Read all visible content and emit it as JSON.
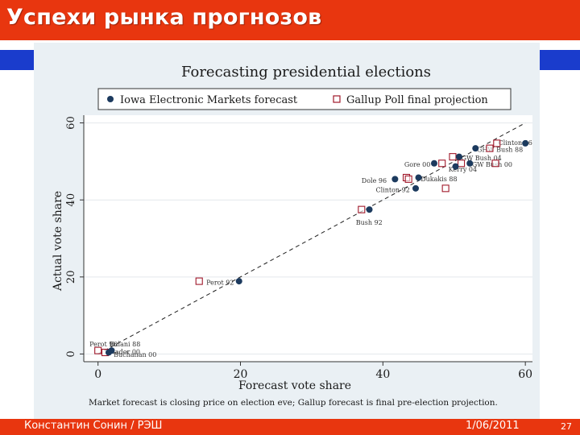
{
  "slide": {
    "title": "Успехи рынка прогнозов",
    "footer_left": "Константин Сонин / РЭШ",
    "footer_date": "1/06/2011",
    "page_number": "27",
    "colors": {
      "header": "#e8360f",
      "blue_bar": "#1a3ccc",
      "panel": "#eaf0f4",
      "iem": "#1c3a5e",
      "gallup": "#a0182a"
    }
  },
  "chart_data": {
    "type": "scatter",
    "title": "Forecasting presidential elections",
    "xlabel": "Forecast vote share",
    "ylabel": "Actual vote share",
    "xlim": [
      -2,
      61
    ],
    "ylim": [
      -2,
      62
    ],
    "xticks": [
      "0",
      "20",
      "40",
      "60"
    ],
    "yticks": [
      "0",
      "20",
      "40",
      "60"
    ],
    "legend": [
      "Iowa Electronic Markets forecast",
      "Gallup Poll final projection"
    ],
    "note": "Market forecast is closing price on election eve; Gallup forecast is final pre-election projection.",
    "reference_line": "45-degree dashed line",
    "series": [
      {
        "name": "Iowa Electronic Markets forecast",
        "marker": "circle",
        "points": [
          {
            "x": 60.0,
            "y": 54.7
          },
          {
            "x": 53.0,
            "y": 53.4
          },
          {
            "x": 50.7,
            "y": 51.2
          },
          {
            "x": 47.2,
            "y": 49.5
          },
          {
            "x": 50.2,
            "y": 48.7
          },
          {
            "x": 52.2,
            "y": 49.5
          },
          {
            "x": 45.0,
            "y": 45.8
          },
          {
            "x": 41.7,
            "y": 45.4
          },
          {
            "x": 44.6,
            "y": 43.0
          },
          {
            "x": 38.1,
            "y": 37.5
          },
          {
            "x": 19.8,
            "y": 18.9
          },
          {
            "x": 1.9,
            "y": 0.9
          },
          {
            "x": 1.5,
            "y": 0.4
          }
        ]
      },
      {
        "name": "Gallup Poll final projection",
        "marker": "hollow-square",
        "points": [
          {
            "x": 56.0,
            "y": 54.7
          },
          {
            "x": 55.0,
            "y": 53.4
          },
          {
            "x": 49.8,
            "y": 51.2
          },
          {
            "x": 48.3,
            "y": 49.5
          },
          {
            "x": 51.0,
            "y": 49.5
          },
          {
            "x": 55.8,
            "y": 49.5
          },
          {
            "x": 43.3,
            "y": 45.8
          },
          {
            "x": 43.6,
            "y": 45.4
          },
          {
            "x": 48.8,
            "y": 43.0
          },
          {
            "x": 37.0,
            "y": 37.5
          },
          {
            "x": 14.2,
            "y": 18.9
          },
          {
            "x": 0.0,
            "y": 0.9
          },
          {
            "x": 1.0,
            "y": 0.4
          }
        ]
      }
    ],
    "annotations": [
      {
        "text": "Clinton 96",
        "x": 56.2,
        "y": 54.9
      },
      {
        "text": "GHW Bush 88",
        "x": 53.2,
        "y": 53.1
      },
      {
        "text": "GW Bush 04",
        "x": 51.0,
        "y": 50.9
      },
      {
        "text": "Gore 00",
        "x": 43.0,
        "y": 49.2
      },
      {
        "text": "Kerry 04",
        "x": 49.2,
        "y": 48.0
      },
      {
        "text": "GW Bush 00",
        "x": 52.5,
        "y": 49.2
      },
      {
        "text": "Dole 96",
        "x": 37.0,
        "y": 45.1
      },
      {
        "text": "Dukakis 88",
        "x": 45.3,
        "y": 45.5
      },
      {
        "text": "Clinton 92",
        "x": 39.0,
        "y": 42.7
      },
      {
        "text": "Bush 92",
        "x": 36.2,
        "y": 34.2
      },
      {
        "text": "Perot 92",
        "x": 15.2,
        "y": 18.6
      },
      {
        "text": "Nader 00",
        "x": 1.6,
        "y": 0.6
      },
      {
        "text": "Buchanan 00",
        "x": 2.2,
        "y": -0.1
      },
      {
        "text": "Perot 96",
        "x": -1.2,
        "y": 2.6
      },
      {
        "text": "Fulani 88",
        "x": 1.6,
        "y": 2.6
      }
    ]
  }
}
